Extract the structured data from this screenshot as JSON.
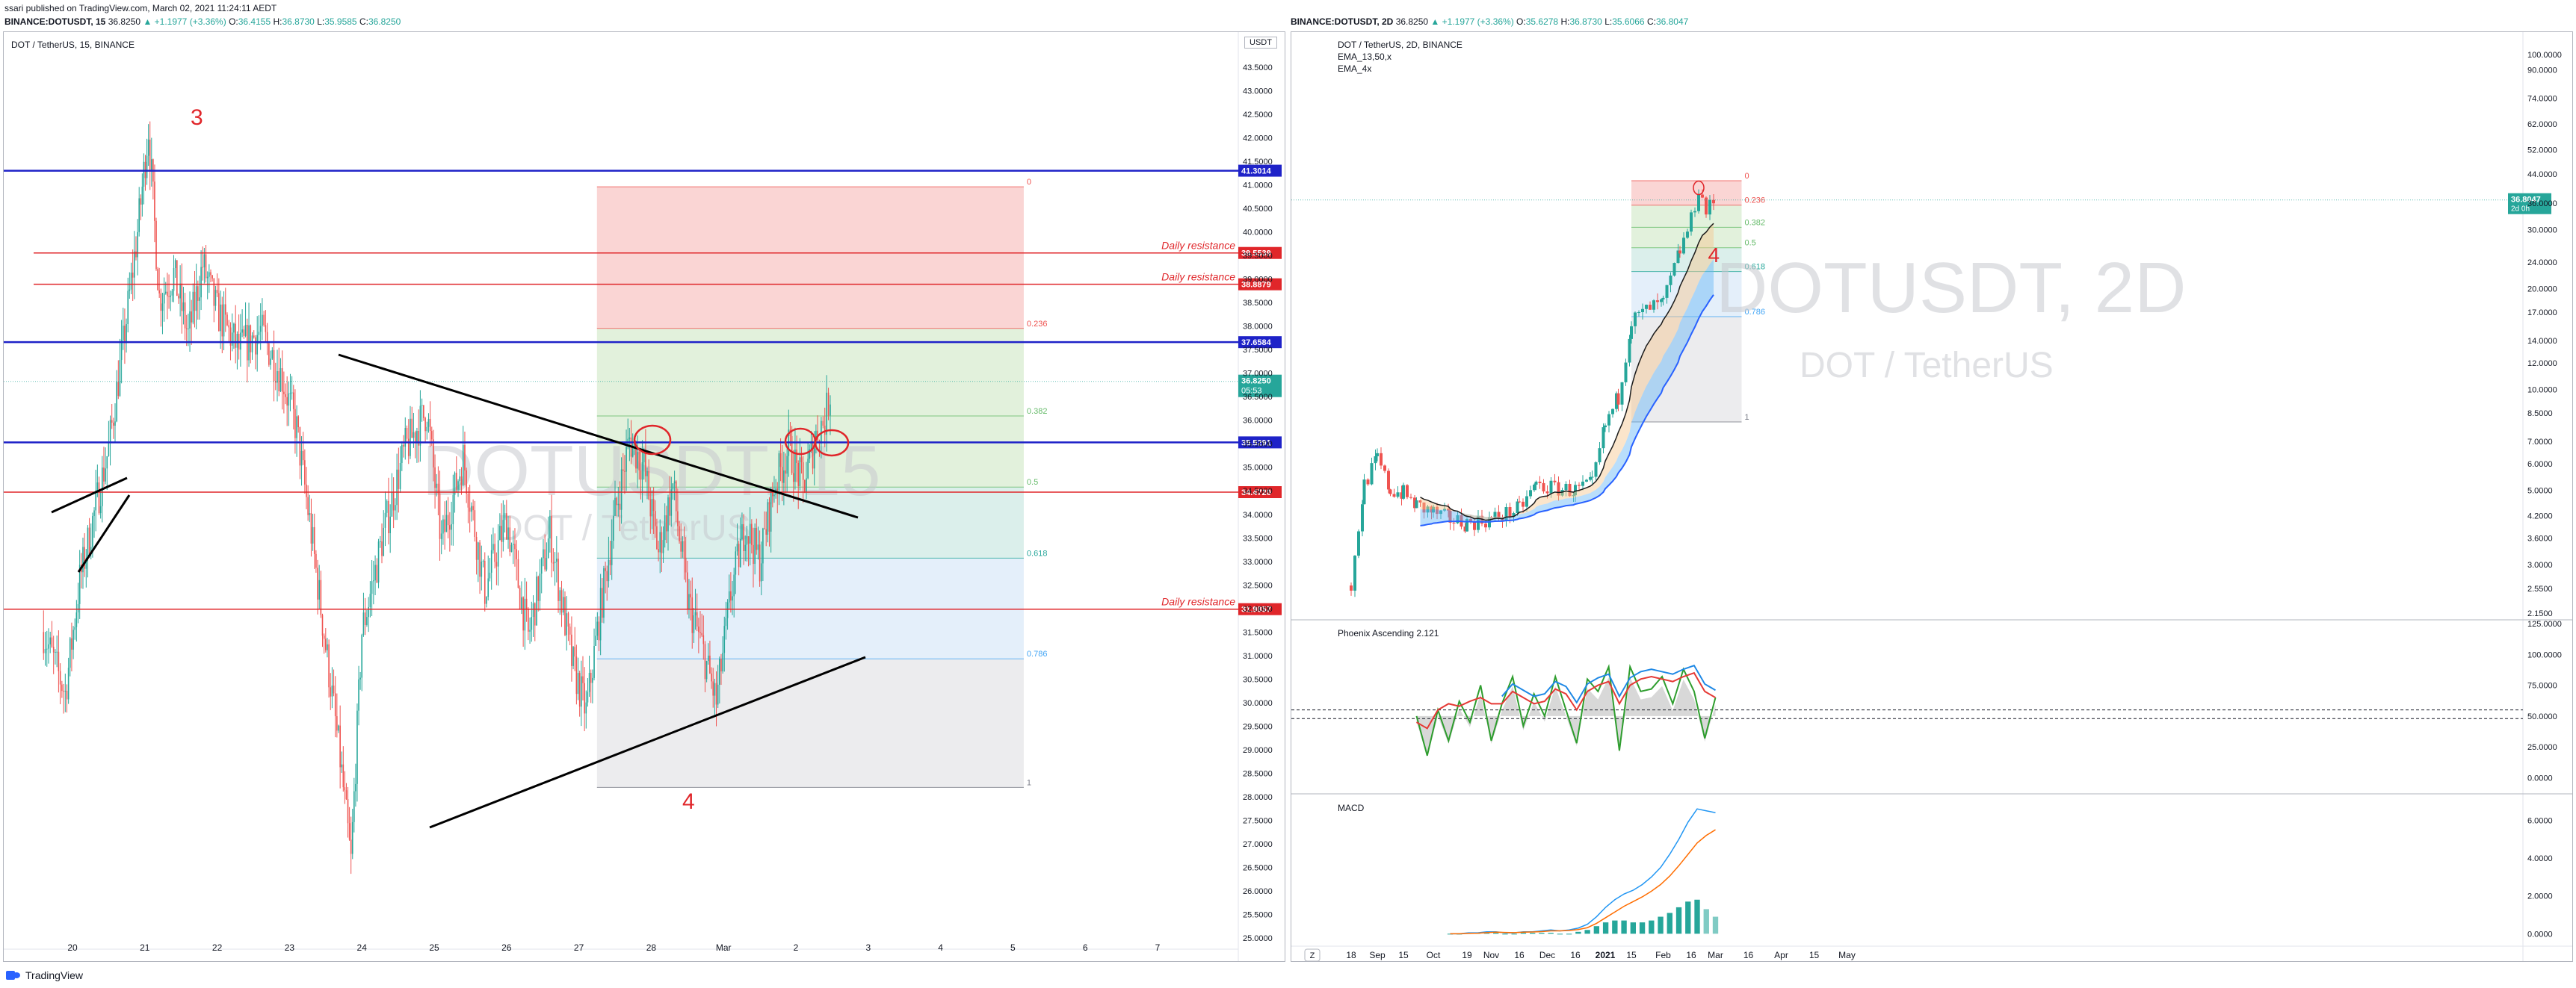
{
  "header": {
    "published": "ssari published on TradingView.com, March 02, 2021 11:24:11 AEDT",
    "left_ohlc": {
      "symbol": "BINANCE:DOTUSDT, 15",
      "price": "36.8250",
      "change": "▲ +1.1977 (+3.36%)",
      "o_label": "O:",
      "o": "36.4155",
      "h_label": "H:",
      "h": "36.8730",
      "l_label": "L:",
      "l": "35.9585",
      "c_label": "C:",
      "c": "36.8250"
    },
    "right_ohlc": {
      "symbol": "BINANCE:DOTUSDT, 2D",
      "price": "36.8250",
      "change": "▲ +1.1977 (+3.36%)",
      "o_label": "O:",
      "o": "35.6278",
      "h_label": "H:",
      "h": "36.8730",
      "l_label": "L:",
      "l": "35.6066",
      "c_label": "C:",
      "c": "36.8047"
    }
  },
  "footer": {
    "brand": "TradingView"
  },
  "colors": {
    "up": "#26a69a",
    "down": "#ef5350",
    "blue_line": "#1e22c8",
    "red_line": "#e0262a",
    "fib_red": "#f8c7c5",
    "fib_green": "#d8ecd0",
    "fib_teal": "#cfe9e4",
    "fib_blue": "#dbe9f8",
    "fib_grey": "#e6e6e8"
  },
  "chart_data": [
    {
      "type": "candlestick",
      "title": "DOT / TetherUS, 15, BINANCE",
      "watermark_symbol": "DOTUSDT, 15",
      "watermark_name": "DOT / TetherUS",
      "currency": "USDT",
      "x_ticks": [
        "20",
        "21",
        "22",
        "23",
        "24",
        "25",
        "26",
        "27",
        "28",
        "Mar",
        "2",
        "3",
        "4",
        "5",
        "6",
        "7"
      ],
      "y_ticks": [
        "43.5000",
        "43.0000",
        "42.5000",
        "42.0000",
        "41.5000",
        "41.0000",
        "40.5000",
        "40.0000",
        "39.5000",
        "39.0000",
        "38.5000",
        "38.0000",
        "37.5000",
        "37.0000",
        "36.5000",
        "36.0000",
        "35.5000",
        "35.0000",
        "34.5000",
        "34.0000",
        "33.5000",
        "33.0000",
        "32.5000",
        "32.0000",
        "31.5000",
        "31.0000",
        "30.5000",
        "30.0000",
        "29.5000",
        "29.0000",
        "28.5000",
        "28.0000",
        "27.5000",
        "27.0000",
        "26.5000",
        "26.0000",
        "25.5000",
        "25.0000"
      ],
      "ylim": [
        25.0,
        43.5
      ],
      "price_path": [
        [
          19.6,
          31.5
        ],
        [
          19.9,
          30.2
        ],
        [
          20.1,
          32.6
        ],
        [
          20.3,
          34.0
        ],
        [
          20.5,
          35.4
        ],
        [
          20.7,
          37.6
        ],
        [
          20.9,
          40.0
        ],
        [
          21.05,
          42.2
        ],
        [
          21.2,
          38.6
        ],
        [
          21.4,
          39.1
        ],
        [
          21.6,
          37.8
        ],
        [
          21.8,
          39.3
        ],
        [
          22.0,
          38.3
        ],
        [
          22.3,
          37.5
        ],
        [
          22.6,
          37.9
        ],
        [
          22.9,
          36.9
        ],
        [
          23.1,
          35.8
        ],
        [
          23.3,
          33.6
        ],
        [
          23.5,
          31.2
        ],
        [
          23.7,
          28.8
        ],
        [
          23.85,
          26.6
        ],
        [
          24.0,
          31.5
        ],
        [
          24.3,
          33.6
        ],
        [
          24.6,
          35.4
        ],
        [
          24.9,
          36.2
        ],
        [
          25.1,
          33.4
        ],
        [
          25.4,
          35.2
        ],
        [
          25.7,
          32.4
        ],
        [
          26.0,
          33.9
        ],
        [
          26.3,
          31.4
        ],
        [
          26.6,
          33.6
        ],
        [
          26.9,
          30.9
        ],
        [
          27.1,
          29.8
        ],
        [
          27.3,
          32.0
        ],
        [
          27.5,
          34.0
        ],
        [
          27.7,
          35.6
        ],
        [
          27.9,
          35.0
        ],
        [
          28.1,
          33.2
        ],
        [
          28.3,
          34.6
        ],
        [
          28.5,
          32.2
        ],
        [
          28.7,
          31.2
        ],
        [
          28.9,
          30.0
        ],
        [
          29.1,
          32.3
        ],
        [
          29.3,
          33.8
        ],
        [
          29.5,
          33.0
        ],
        [
          29.7,
          34.6
        ],
        [
          29.9,
          35.4
        ],
        [
          30.1,
          34.6
        ],
        [
          30.3,
          35.8
        ],
        [
          30.4,
          36.0
        ],
        [
          30.5,
          36.8
        ]
      ],
      "horizontal_levels": [
        {
          "price": 41.3014,
          "label": "41.3014",
          "color": "blue"
        },
        {
          "price": 39.5539,
          "label": "39.5539",
          "color": "red",
          "text": "Daily resistance"
        },
        {
          "price": 38.8879,
          "label": "38.8879",
          "color": "red",
          "text": "Daily resistance"
        },
        {
          "price": 37.6584,
          "label": "37.6584",
          "color": "blue"
        },
        {
          "price": 35.5291,
          "label": "35.5291",
          "color": "blue"
        },
        {
          "price": 34.472,
          "label": "34.4720",
          "color": "red"
        },
        {
          "price": 31.9857,
          "label": "31.9857",
          "color": "red",
          "text": "Daily resistance"
        }
      ],
      "current_price_label": "36.8250",
      "countdown_label": "05:53",
      "fib_levels": [
        {
          "ratio": "0",
          "price": 40.96
        },
        {
          "ratio": "0.236",
          "price": 37.95
        },
        {
          "ratio": "0.382",
          "price": 36.09
        },
        {
          "ratio": "0.5",
          "price": 34.58
        },
        {
          "ratio": "0.618",
          "price": 33.07
        },
        {
          "ratio": "0.786",
          "price": 30.93
        },
        {
          "ratio": "1",
          "price": 28.2
        }
      ],
      "annotations": [
        {
          "text": "3"
        },
        {
          "text": "4"
        }
      ]
    },
    {
      "type": "candlestick",
      "title": "DOT / TetherUS, 2D, BINANCE",
      "watermark_symbol": "DOTUSDT, 2D",
      "watermark_name": "DOT / TetherUS",
      "legend": [
        "EMA_13,50,x",
        "EMA_4x"
      ],
      "y_scale": "log",
      "x_ticks": [
        "18",
        "Sep",
        "15",
        "Oct",
        "19",
        "Nov",
        "16",
        "Dec",
        "16",
        "2021",
        "15",
        "Feb",
        "16",
        "Mar",
        "16",
        "Apr",
        "15",
        "May"
      ],
      "y_ticks": [
        "100.0000",
        "90.0000",
        "74.0000",
        "62.0000",
        "52.0000",
        "44.0000",
        "36.0000",
        "30.0000",
        "24.0000",
        "20.0000",
        "17.0000",
        "14.0000",
        "12.0000",
        "10.0000",
        "8.5000",
        "7.0000",
        "6.0000",
        "5.0000",
        "4.2000",
        "3.6000",
        "3.0000",
        "2.5500",
        "2.1500"
      ],
      "current_price_label": "36.8047",
      "countdown_label": "2d 0h",
      "price_path": [
        [
          "Aug 18",
          2.6
        ],
        [
          "Aug 25",
          5.2
        ],
        [
          "Sep 1",
          6.2
        ],
        [
          "Sep 8",
          5.0
        ],
        [
          "Sep 15",
          4.9
        ],
        [
          "Sep 22",
          4.5
        ],
        [
          "Oct 1",
          4.3
        ],
        [
          "Oct 10",
          4.1
        ],
        [
          "Oct 19",
          4.0
        ],
        [
          "Nov 1",
          4.1
        ],
        [
          "Nov 16",
          4.4
        ],
        [
          "Nov 25",
          5.2
        ],
        [
          "Dec 1",
          5.1
        ],
        [
          "Dec 16",
          5.0
        ],
        [
          "Dec 25",
          5.2
        ],
        [
          "Jan 1",
          7.8
        ],
        [
          "Jan 8",
          9.5
        ],
        [
          "Jan 15",
          16.0
        ],
        [
          "Jan 25",
          17.5
        ],
        [
          "Feb 1",
          18.0
        ],
        [
          "Feb 10",
          26.0
        ],
        [
          "Feb 16",
          32.0
        ],
        [
          "Feb 20",
          40.0
        ],
        [
          "Feb 24",
          34.0
        ],
        [
          "Mar 1",
          36.8
        ]
      ],
      "fib_levels": [
        {
          "ratio": "0",
          "price": 42.0
        },
        {
          "ratio": "0.236",
          "price": 35.5
        },
        {
          "ratio": "0.382",
          "price": 30.5
        },
        {
          "ratio": "0.5",
          "price": 26.5
        },
        {
          "ratio": "0.618",
          "price": 22.5
        },
        {
          "ratio": "0.786",
          "price": 16.5
        },
        {
          "ratio": "1",
          "price": 8.0
        }
      ],
      "annotations": [
        {
          "text": "4"
        }
      ],
      "timezone_button": "Z"
    },
    {
      "type": "line",
      "title": "Phoenix Ascending 2.121",
      "y_ticks": [
        "125.0000",
        "100.0000",
        "75.0000",
        "50.0000",
        "25.0000",
        "0.0000"
      ],
      "ylim": [
        -10,
        125
      ],
      "values_green": [
        50,
        18,
        55,
        30,
        62,
        45,
        75,
        30,
        60,
        82,
        42,
        68,
        50,
        82,
        55,
        28,
        80,
        70,
        90,
        22,
        90,
        70,
        72,
        82,
        60,
        88,
        70,
        32,
        65
      ],
      "values_red": [
        45,
        40,
        55,
        60,
        58,
        62,
        65,
        60,
        60,
        70,
        65,
        60,
        62,
        72,
        68,
        55,
        70,
        75,
        78,
        60,
        75,
        80,
        82,
        80,
        78,
        82,
        85,
        70,
        65
      ]
    },
    {
      "type": "line",
      "title": "MACD",
      "y_ticks": [
        "6.0000",
        "4.0000",
        "2.0000",
        "0.0000"
      ],
      "ylim": [
        -0.5,
        7.2
      ],
      "macd": [
        0,
        0,
        0.05,
        0.05,
        0.1,
        0.1,
        0.05,
        0.05,
        0.1,
        0.1,
        0.15,
        0.2,
        0.15,
        0.2,
        0.3,
        0.5,
        0.9,
        1.4,
        1.8,
        2.1,
        2.3,
        2.6,
        3.0,
        3.5,
        4.2,
        5.0,
        5.9,
        6.6,
        6.5,
        6.4
      ],
      "signal": [
        0,
        0,
        0.02,
        0.03,
        0.06,
        0.08,
        0.07,
        0.06,
        0.08,
        0.09,
        0.11,
        0.15,
        0.15,
        0.17,
        0.22,
        0.32,
        0.55,
        0.85,
        1.15,
        1.45,
        1.7,
        1.95,
        2.25,
        2.6,
        3.05,
        3.6,
        4.2,
        4.8,
        5.2,
        5.5
      ],
      "histogram": [
        0,
        0,
        0.05,
        0.05,
        0.05,
        0.05,
        0,
        0,
        0.05,
        0.05,
        0.05,
        0.05,
        0,
        0,
        0.1,
        0.2,
        0.4,
        0.6,
        0.7,
        0.7,
        0.6,
        0.6,
        0.7,
        0.9,
        1.1,
        1.4,
        1.7,
        1.8,
        1.3,
        0.9
      ]
    }
  ]
}
